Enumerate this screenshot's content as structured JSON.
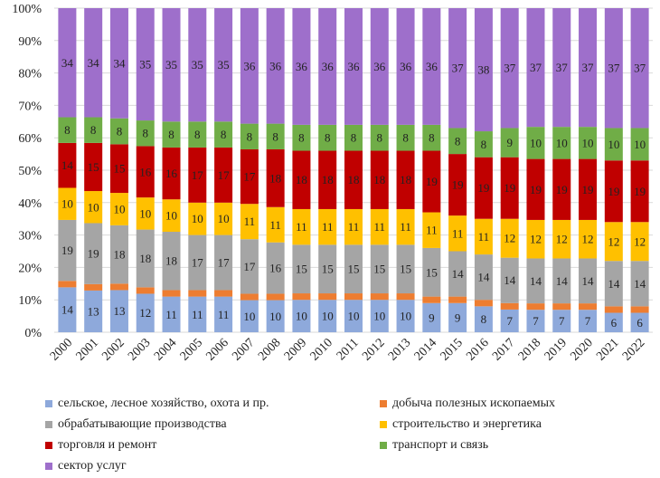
{
  "chart_data": {
    "type": "bar",
    "stacked": true,
    "normalized": true,
    "categories": [
      "2000",
      "2001",
      "2002",
      "2003",
      "2004",
      "2005",
      "2006",
      "2007",
      "2008",
      "2009",
      "2010",
      "2011",
      "2012",
      "2013",
      "2014",
      "2015",
      "2016",
      "2017",
      "2018",
      "2019",
      "2020",
      "2021",
      "2022"
    ],
    "y_ticks": [
      "0%",
      "10%",
      "20%",
      "30%",
      "40%",
      "50%",
      "60%",
      "70%",
      "80%",
      "90%",
      "100%"
    ],
    "ylim": [
      0,
      100
    ],
    "grid": true,
    "legend_position": "bottom",
    "series": [
      {
        "name": "сельское, лесное хозяйство, охота и пр.",
        "color": "#8EA9DB",
        "values": [
          14,
          13,
          13,
          12,
          11,
          11,
          11,
          10,
          10,
          10,
          10,
          10,
          10,
          10,
          9,
          9,
          8,
          7,
          7,
          7,
          7,
          6,
          6
        ],
        "labels": [
          "14",
          "13",
          "13",
          "12",
          "11",
          "11",
          "11",
          "10",
          "10",
          "10",
          "10",
          "10",
          "10",
          "10",
          "9",
          "9",
          "8",
          "7",
          "7",
          "7",
          "7",
          "6",
          "6"
        ]
      },
      {
        "name": "добыча полезных ископаемых",
        "color": "#ED7D31",
        "values": [
          2,
          2,
          2,
          2,
          2,
          2,
          2,
          2,
          2,
          2,
          2,
          2,
          2,
          2,
          2,
          2,
          2,
          2,
          2,
          2,
          2,
          2,
          2
        ],
        "labels": []
      },
      {
        "name": "обрабатывающие производства",
        "color": "#A5A5A5",
        "values": [
          19,
          19,
          18,
          18,
          18,
          17,
          17,
          17,
          16,
          15,
          15,
          15,
          15,
          15,
          15,
          14,
          14,
          14,
          14,
          14,
          14,
          14,
          14
        ],
        "labels": [
          "19",
          "19",
          "18",
          "18",
          "18",
          "17",
          "17",
          "17",
          "16",
          "15",
          "15",
          "15",
          "15",
          "15",
          "15",
          "14",
          "14",
          "14",
          "14",
          "14",
          "14",
          "14",
          "14"
        ]
      },
      {
        "name": "строительство и энергетика",
        "color": "#FFC000",
        "values": [
          10,
          10,
          10,
          10,
          10,
          10,
          10,
          11,
          11,
          11,
          11,
          11,
          11,
          11,
          11,
          11,
          11,
          12,
          12,
          12,
          12,
          12,
          12
        ],
        "labels": [
          "10",
          "10",
          "10",
          "10",
          "10",
          "10",
          "10",
          "11",
          "11",
          "11",
          "11",
          "11",
          "11",
          "11",
          "11",
          "11",
          "11",
          "12",
          "12",
          "12",
          "12",
          "12",
          "12"
        ]
      },
      {
        "name": "торговля и ремонт",
        "color": "#C00000",
        "values": [
          14,
          15,
          15,
          16,
          16,
          17,
          17,
          17,
          18,
          18,
          18,
          18,
          18,
          18,
          19,
          19,
          19,
          19,
          19,
          19,
          19,
          19,
          19
        ],
        "labels": [
          "14",
          "15",
          "15",
          "16",
          "16",
          "17",
          "17",
          "17",
          "18",
          "18",
          "18",
          "18",
          "18",
          "18",
          "19",
          "19",
          "19",
          "19",
          "19",
          "19",
          "19",
          "19",
          "19"
        ]
      },
      {
        "name": "транспорт и связь",
        "color": "#70AD47",
        "values": [
          8,
          8,
          8,
          8,
          8,
          8,
          8,
          8,
          8,
          8,
          8,
          8,
          8,
          8,
          8,
          8,
          8,
          9,
          10,
          10,
          10,
          10,
          10
        ],
        "labels": [
          "8",
          "8",
          "8",
          "8",
          "8",
          "8",
          "8",
          "8",
          "8",
          "8",
          "8",
          "8",
          "8",
          "8",
          "8",
          "8",
          "8",
          "9",
          "10",
          "10",
          "10",
          "10",
          "10"
        ]
      },
      {
        "name": "сектор услуг",
        "color": "#9E6FCB",
        "values": [
          34,
          34,
          34,
          35,
          35,
          35,
          35,
          36,
          36,
          36,
          36,
          36,
          36,
          36,
          36,
          37,
          38,
          37,
          37,
          37,
          37,
          37,
          37
        ],
        "labels": [
          "34",
          "34",
          "34",
          "35",
          "35",
          "35",
          "35",
          "36",
          "36",
          "36",
          "36",
          "36",
          "36",
          "36",
          "36",
          "37",
          "38",
          "37",
          "37",
          "37",
          "37",
          "37",
          "37"
        ]
      }
    ]
  }
}
